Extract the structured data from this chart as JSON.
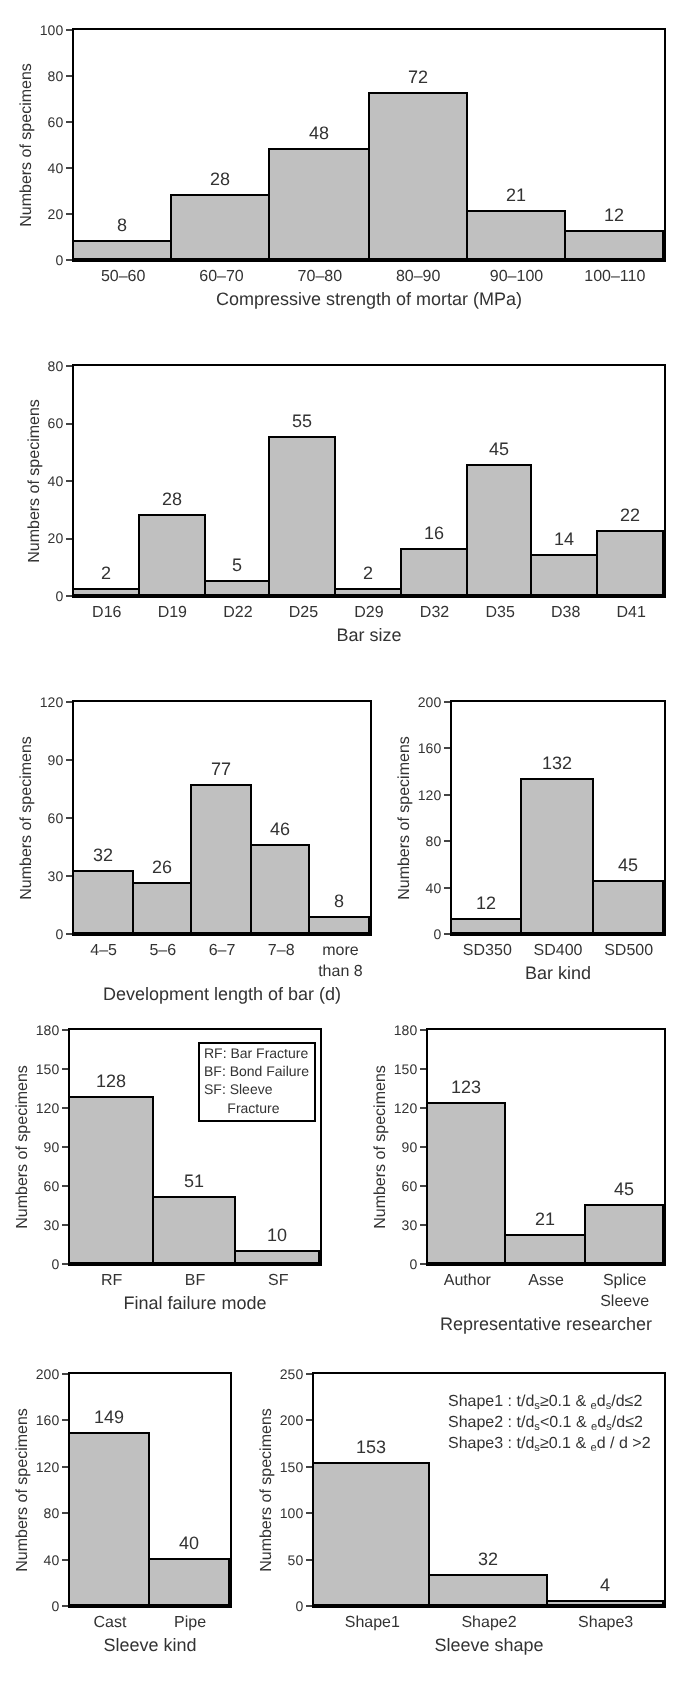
{
  "chart_data": [
    {
      "type": "bar",
      "categories": [
        "50–60",
        "60–70",
        "70–80",
        "80–90",
        "90–100",
        "100–110"
      ],
      "values": [
        8,
        28,
        48,
        72,
        21,
        12
      ],
      "color": "#c0c0c0",
      "ylim": [
        0,
        100
      ],
      "yticks": [
        0,
        20,
        40,
        60,
        80,
        100
      ],
      "xlabel": "Compressive strength of mortar (MPa)",
      "ylabel": "Numbers of specimens",
      "data_labels": true
    },
    {
      "type": "bar",
      "categories": [
        "D16",
        "D19",
        "D22",
        "D25",
        "D29",
        "D32",
        "D35",
        "D38",
        "D41"
      ],
      "values": [
        2,
        28,
        5,
        55,
        2,
        16,
        45,
        14,
        22
      ],
      "color": "#c0c0c0",
      "ylim": [
        0,
        80
      ],
      "yticks": [
        0,
        20,
        40,
        60,
        80
      ],
      "xlabel": "Bar size",
      "ylabel": "Numbers of specimens",
      "data_labels": true
    },
    {
      "type": "bar",
      "categories": [
        "4–5",
        "5–6",
        "6–7",
        "7–8",
        "more than 8"
      ],
      "values": [
        32,
        26,
        77,
        46,
        8
      ],
      "color": "#c0c0c0",
      "ylim": [
        0,
        120
      ],
      "yticks": [
        0,
        30,
        60,
        90,
        120
      ],
      "xlabel": "Development length of bar (d)",
      "ylabel": "Numbers of specimens",
      "data_labels": true
    },
    {
      "type": "bar",
      "categories": [
        "SD350",
        "SD400",
        "SD500"
      ],
      "values": [
        12,
        132,
        45
      ],
      "color": "#c0c0c0",
      "ylim": [
        0,
        200
      ],
      "yticks": [
        0,
        40,
        80,
        120,
        160,
        200
      ],
      "xlabel": "Bar kind",
      "ylabel": "Numbers of specimens",
      "data_labels": true
    },
    {
      "type": "bar",
      "categories": [
        "RF",
        "BF",
        "SF"
      ],
      "values": [
        128,
        51,
        10
      ],
      "color": "#c0c0c0",
      "ylim": [
        0,
        180
      ],
      "yticks": [
        0,
        30,
        60,
        90,
        120,
        150,
        180
      ],
      "xlabel": "Final failure mode",
      "ylabel": "Numbers of specimens",
      "data_labels": true,
      "annotations": [
        "RF: Bar Fracture",
        "BF: Bond Failure",
        "SF: Sleeve Fracture"
      ]
    },
    {
      "type": "bar",
      "categories": [
        "Author",
        "Asse",
        "Splice Sleeve"
      ],
      "values": [
        123,
        21,
        45
      ],
      "color": "#c0c0c0",
      "ylim": [
        0,
        180
      ],
      "yticks": [
        0,
        30,
        60,
        90,
        120,
        150,
        180
      ],
      "xlabel": "Representative researcher",
      "ylabel": "Numbers of specimens",
      "data_labels": true
    },
    {
      "type": "bar",
      "categories": [
        "Cast",
        "Pipe"
      ],
      "values": [
        149,
        40
      ],
      "color": "#c0c0c0",
      "ylim": [
        0,
        200
      ],
      "yticks": [
        0,
        40,
        80,
        120,
        160,
        200
      ],
      "xlabel": "Sleeve kind",
      "ylabel": "Numbers of specimens",
      "data_labels": true
    },
    {
      "type": "bar",
      "categories": [
        "Shape1",
        "Shape2",
        "Shape3"
      ],
      "values": [
        153,
        32,
        4
      ],
      "color": "#c0c0c0",
      "ylim": [
        0,
        250
      ],
      "yticks": [
        0,
        50,
        100,
        150,
        200,
        250
      ],
      "xlabel": "Sleeve shape",
      "ylabel": "Numbers of specimens",
      "data_labels": true,
      "annotations": [
        "Shape1 : t/d$_{s}$≥0.1 & $_{e}$d$_{s}$/d≤2",
        "Shape2 : t/d$_{s}$<0.1 & $_{e}$d$_{s}$/d≤2",
        "Shape3 : t/d$_{s}$≥0.1 & $_{e}$d / d >2"
      ]
    }
  ]
}
